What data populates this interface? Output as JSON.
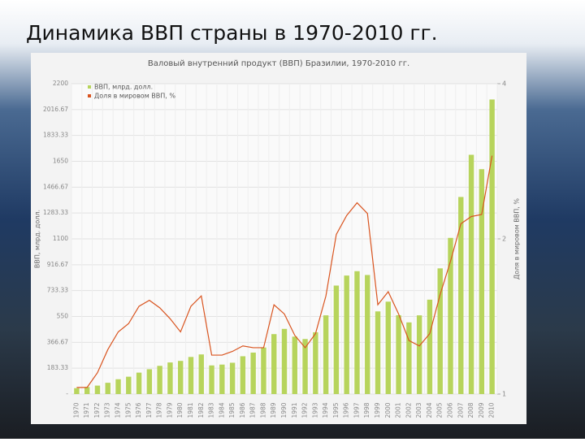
{
  "slide_title": "Динамика ВВП страны в 1970-2010 гг.",
  "chart_data": {
    "type": "combo",
    "title": "Валовый внутренний продукт (ВВП) Бразилии, 1970-2010 гг.",
    "y_label": "ВВП, млрд. долл.",
    "y2_label": "Доля в мировом ВВП, %",
    "categories": [
      "1970",
      "1971",
      "1972",
      "1973",
      "1974",
      "1975",
      "1976",
      "1977",
      "1978",
      "1979",
      "1980",
      "1981",
      "1982",
      "1983",
      "1984",
      "1985",
      "1986",
      "1987",
      "1988",
      "1989",
      "1990",
      "1991",
      "1992",
      "1993",
      "1994",
      "1995",
      "1996",
      "1997",
      "1998",
      "1999",
      "2000",
      "2001",
      "2002",
      "2003",
      "2004",
      "2005",
      "2006",
      "2007",
      "2008",
      "2009",
      "2010"
    ],
    "series": [
      {
        "name": "ВВП, млрд. долл.",
        "type": "bar",
        "color": "#b7d45c",
        "values": [
          42,
          50,
          60,
          80,
          105,
          123,
          152,
          176,
          200,
          224,
          235,
          263,
          281,
          203,
          209,
          222,
          268,
          294,
          330,
          425,
          462,
          407,
          390,
          438,
          558,
          769,
          840,
          871,
          844,
          586,
          655,
          559,
          508,
          558,
          669,
          891,
          1107,
          1397,
          1696,
          1594,
          2088
        ]
      },
      {
        "name": "Доля в мировом ВВП, %",
        "type": "line",
        "axis": "y2",
        "color": "#d9541f",
        "values": [
          1.03,
          1.03,
          1.1,
          1.22,
          1.32,
          1.37,
          1.48,
          1.52,
          1.47,
          1.4,
          1.32,
          1.48,
          1.55,
          1.19,
          1.19,
          1.21,
          1.24,
          1.23,
          1.23,
          1.49,
          1.43,
          1.3,
          1.23,
          1.31,
          1.55,
          2.04,
          2.22,
          2.35,
          2.24,
          1.49,
          1.58,
          1.43,
          1.27,
          1.24,
          1.31,
          1.56,
          1.81,
          2.14,
          2.21,
          2.23,
          2.9
        ]
      }
    ],
    "ylim": [
      0,
      2200
    ],
    "yticks": [
      {
        "value": 0,
        "label": "-"
      },
      183.33,
      366.67,
      550,
      733.33,
      916.67,
      1100,
      1283.33,
      1466.67,
      1650,
      1833.33,
      2016.67,
      2200
    ],
    "y2lim": [
      1,
      4
    ],
    "y2ticks": [
      1,
      2,
      4
    ],
    "y2log": true,
    "grid": true,
    "legend": "top-left"
  }
}
